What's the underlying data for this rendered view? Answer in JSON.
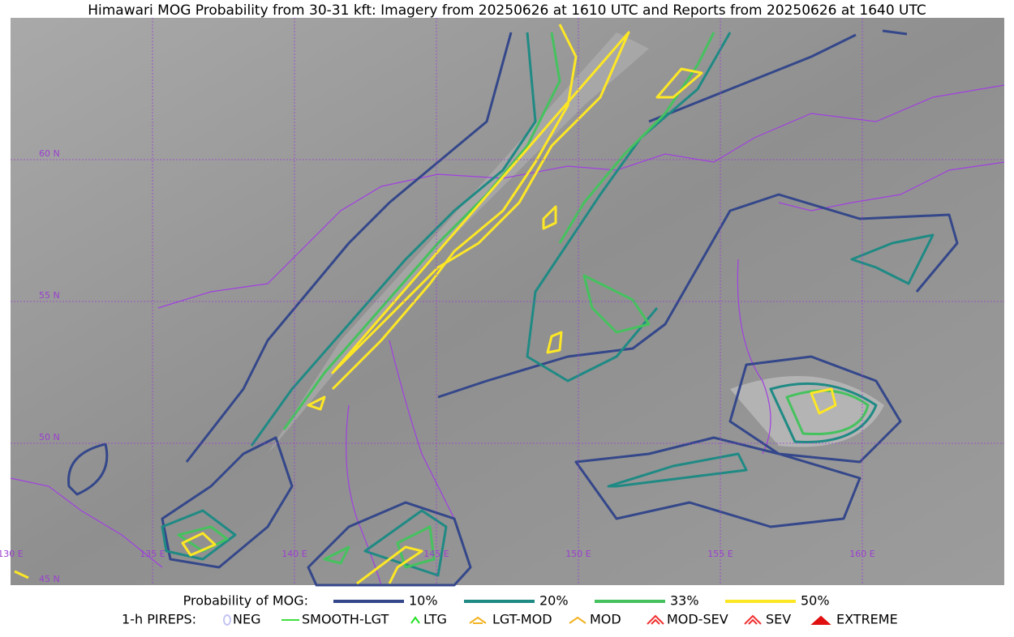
{
  "title": "Himawari MOG Probability from 30-31 kft: Imagery from 20250626 at 1610 UTC and Reports from 20250626 at 1640 UTC",
  "map": {
    "lat_labels": [
      "60 N",
      "55 N",
      "50 N",
      "45 N"
    ],
    "lon_labels": [
      "130 E",
      "135 E",
      "140 E",
      "145 E",
      "150 E",
      "155 E",
      "160 E"
    ]
  },
  "legend": {
    "title": "Probability of MOG:",
    "items": [
      {
        "label": "10%",
        "color": "#34478a"
      },
      {
        "label": "20%",
        "color": "#1f8a84"
      },
      {
        "label": "33%",
        "color": "#45c25e"
      },
      {
        "label": "50%",
        "color": "#fde725"
      }
    ]
  },
  "pireps": {
    "title": "1-h PIREPS:",
    "items": [
      {
        "label": "NEG",
        "color": "#c4c4f2"
      },
      {
        "label": "SMOOTH-LGT",
        "color": "#3ee03e"
      },
      {
        "label": "LTG",
        "color": "#22e022"
      },
      {
        "label": "LGT-MOD",
        "color": "#f2b222"
      },
      {
        "label": "MOD",
        "color": "#f2b222"
      },
      {
        "label": "MOD-SEV",
        "color": "#f03030"
      },
      {
        "label": "SEV",
        "color": "#f03030"
      },
      {
        "label": "EXTREME",
        "color": "#e01010"
      }
    ]
  }
}
